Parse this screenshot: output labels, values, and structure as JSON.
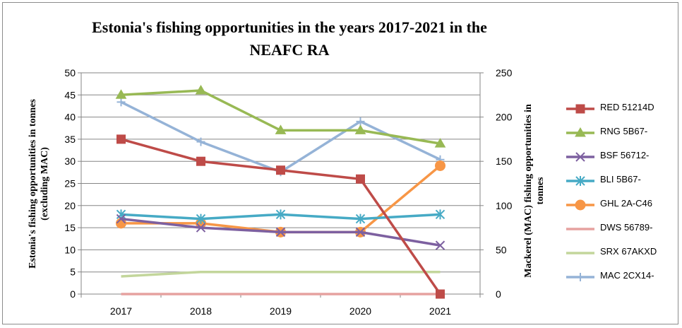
{
  "chart_data": {
    "type": "line",
    "title_line1": "Estonia's  fishing opportunities  in the years  2017-2021 in the",
    "title_line2": "NEAFC RA",
    "ylabel_left_line1": "Estonia's fishing opportunities in tonnes",
    "ylabel_left_line2": "(excluding MAC)",
    "ylabel_right_line1": "Mackerel (MAC) fishing opportunities in",
    "ylabel_right_line2": "tonnes",
    "categories": [
      "2017",
      "2018",
      "2019",
      "2020",
      "2021"
    ],
    "y_left": {
      "min": 0,
      "max": 50,
      "ticks": [
        "0",
        "5",
        "10",
        "15",
        "20",
        "25",
        "30",
        "35",
        "40",
        "45",
        "50"
      ]
    },
    "y_right": {
      "min": 0,
      "max": 250,
      "ticks": [
        "0",
        "50",
        "100",
        "150",
        "200",
        "250"
      ]
    },
    "grid": true,
    "legend_position": "right",
    "series": [
      {
        "name": "RED 51214D",
        "axis": "left",
        "color": "#BE4B48",
        "marker": "square",
        "values": [
          35,
          30,
          28,
          26,
          0
        ]
      },
      {
        "name": "RNG 5B67-",
        "axis": "left",
        "color": "#98B954",
        "marker": "triangle",
        "values": [
          45,
          46,
          37,
          37,
          34
        ]
      },
      {
        "name": "BSF 56712-",
        "axis": "left",
        "color": "#7D60A0",
        "marker": "x",
        "values": [
          17,
          15,
          14,
          14,
          11
        ]
      },
      {
        "name": "BLI 5B67-",
        "axis": "left",
        "color": "#46AAC5",
        "marker": "star",
        "values": [
          18,
          17,
          18,
          17,
          18
        ]
      },
      {
        "name": "GHL 2A-C46",
        "axis": "left",
        "color": "#F79646",
        "marker": "circle",
        "values": [
          16,
          16,
          14,
          14,
          29
        ]
      },
      {
        "name": "DWS 56789-",
        "axis": "left",
        "color": "#E6A2A0",
        "marker": "none",
        "values": [
          0,
          0,
          0,
          0,
          0
        ]
      },
      {
        "name": "SRX 67AKXD",
        "axis": "left",
        "color": "#C3D69B",
        "marker": "none",
        "values": [
          4,
          5,
          5,
          5,
          5
        ]
      },
      {
        "name": "MAC 2CX14-",
        "axis": "right",
        "color": "#95B3D7",
        "marker": "plus",
        "values": [
          217,
          172,
          138,
          195,
          152
        ]
      }
    ]
  }
}
